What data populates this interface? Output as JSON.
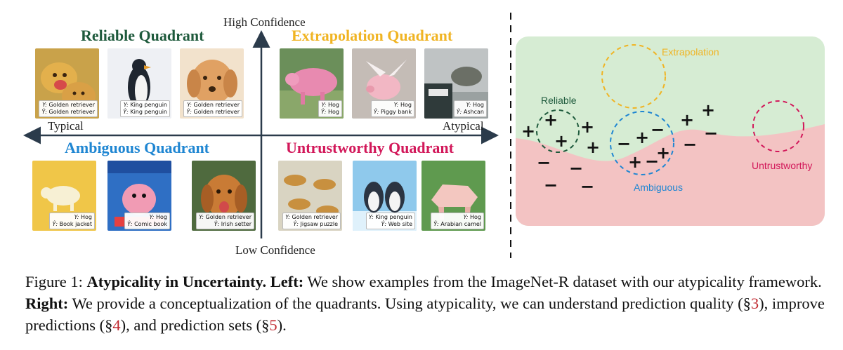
{
  "figure": {
    "axes": {
      "top": "High Confidence",
      "bottom": "Low Confidence",
      "left": "Typical",
      "right": "Atypical"
    },
    "quadrants": [
      {
        "title": "Reliable Quadrant",
        "color": "#1e5a3c",
        "examples": [
          {
            "label_line": "Golden retriever",
            "pred_line": "Golden retriever",
            "art": "two golden retrievers"
          },
          {
            "label_line": "King penguin",
            "pred_line": "King penguin",
            "art": "penguin figurine"
          },
          {
            "label_line": "Golden retriever",
            "pred_line": "Golden retriever",
            "art": "golden retriever sketch"
          }
        ]
      },
      {
        "title": "Extrapolation Quadrant",
        "color": "#f0b423",
        "examples": [
          {
            "label_line": "Hog",
            "pred_line": "Hog",
            "art": "pink pig painting"
          },
          {
            "label_line": "Hog",
            "pred_line": "Piggy bank",
            "art": "winged pig figurine"
          },
          {
            "label_line": "Hog",
            "pred_line": "Ashcan",
            "art": "pig statue"
          }
        ]
      },
      {
        "title": "Ambiguous Quadrant",
        "color": "#1f86d2",
        "examples": [
          {
            "label_line": "Hog",
            "pred_line": "Book jacket",
            "art": "pig on yellow book cover"
          },
          {
            "label_line": "Hog",
            "pred_line": "Comic book",
            "art": "capitalist pig comic"
          },
          {
            "label_line": "Golden retriever",
            "pred_line": "Irish setter",
            "art": "golden retriever painting"
          }
        ]
      },
      {
        "title": "Untrustworthy Quadrant",
        "color": "#d2185a",
        "examples": [
          {
            "label_line": "Golden retriever",
            "pred_line": "Jigsaw puzzle",
            "art": "dogs pattern"
          },
          {
            "label_line": "King penguin",
            "pred_line": "Web site",
            "art": "cartoon penguins"
          },
          {
            "label_line": "Hog",
            "pred_line": "Arabian camel",
            "art": "origami pig"
          }
        ]
      }
    ],
    "label_prefix": "Y: ",
    "pred_prefix": "Ŷ: ",
    "concept": {
      "regions": {
        "upper_color": "#d6ecd3",
        "lower_color": "#f3c3c3"
      },
      "circles": [
        {
          "name": "Reliable",
          "color": "#1e5a3c"
        },
        {
          "name": "Extrapolation",
          "color": "#f0b423"
        },
        {
          "name": "Ambiguous",
          "color": "#1f86d2"
        },
        {
          "name": "Untrustworthy",
          "color": "#d2185a"
        }
      ],
      "plus": "+",
      "minus": "−"
    }
  },
  "caption": {
    "prefix": "Figure 1: ",
    "bold_1": "Atypicality in Uncertainty. Left:",
    "text_1": " We show examples from the ImageNet-R dataset with our atypicality framework. ",
    "bold_2": "Right:",
    "text_2": " We provide a conceptualization of the quadrants. Using atypicality, we can understand prediction quality (§",
    "ref_1": "3",
    "text_3": "), improve predictions (§",
    "ref_2": "4",
    "text_4": "), and prediction sets (§",
    "ref_3": "5",
    "text_5": ")."
  }
}
